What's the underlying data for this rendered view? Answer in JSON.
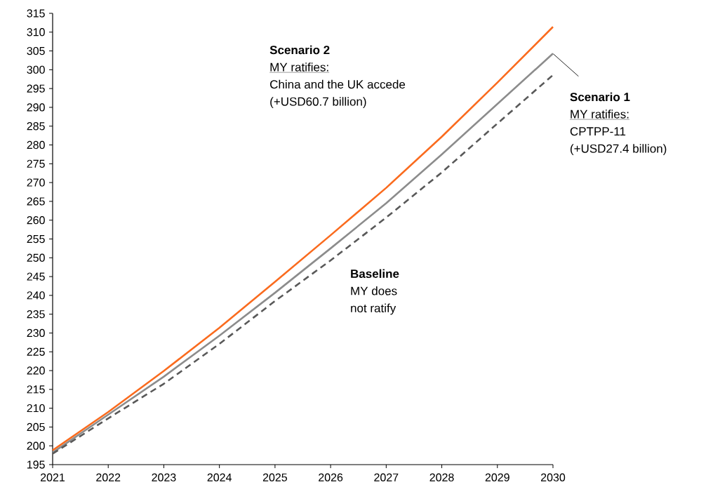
{
  "chart_data": {
    "type": "line",
    "x": [
      2021,
      2022,
      2023,
      2024,
      2025,
      2026,
      2027,
      2028,
      2029,
      2030
    ],
    "series": [
      {
        "color": "#fa6b1e",
        "line_style": "solid",
        "values": [
          198.8,
          209.0,
          219.9,
          231.4,
          243.6,
          256.0,
          268.6,
          282.2,
          296.6,
          311.4
        ]
      },
      {
        "color": "#8c8c8c",
        "line_style": "solid",
        "values": [
          198.2,
          208.3,
          218.4,
          229.3,
          240.7,
          252.5,
          264.5,
          277.5,
          290.9,
          304.3
        ]
      },
      {
        "color": "#595959",
        "line_style": "dashed",
        "values": [
          197.9,
          207.3,
          216.5,
          227.1,
          238.5,
          249.3,
          260.7,
          272.7,
          285.7,
          298.6
        ]
      }
    ],
    "annotations": [
      "Scenario 2",
      "MY ratifies:",
      "China and the UK accede",
      "(+USD60.7 billion)",
      "Scenario 1",
      "MY ratifies:",
      "CPTPP-11",
      "(+USD27.4 billion)",
      "Baseline",
      "MY does",
      "not ratify"
    ],
    "xlim": [
      2021,
      2030
    ],
    "ylim": [
      195,
      315
    ],
    "xticks": [
      2021,
      2022,
      2023,
      2024,
      2025,
      2026,
      2027,
      2028,
      2029,
      2030
    ],
    "yticks": [
      195,
      200,
      205,
      210,
      215,
      220,
      225,
      230,
      235,
      240,
      245,
      250,
      255,
      260,
      265,
      270,
      275,
      280,
      285,
      290,
      295,
      300,
      305,
      310,
      315
    ],
    "grid": false,
    "legend": false,
    "marker": "none"
  }
}
